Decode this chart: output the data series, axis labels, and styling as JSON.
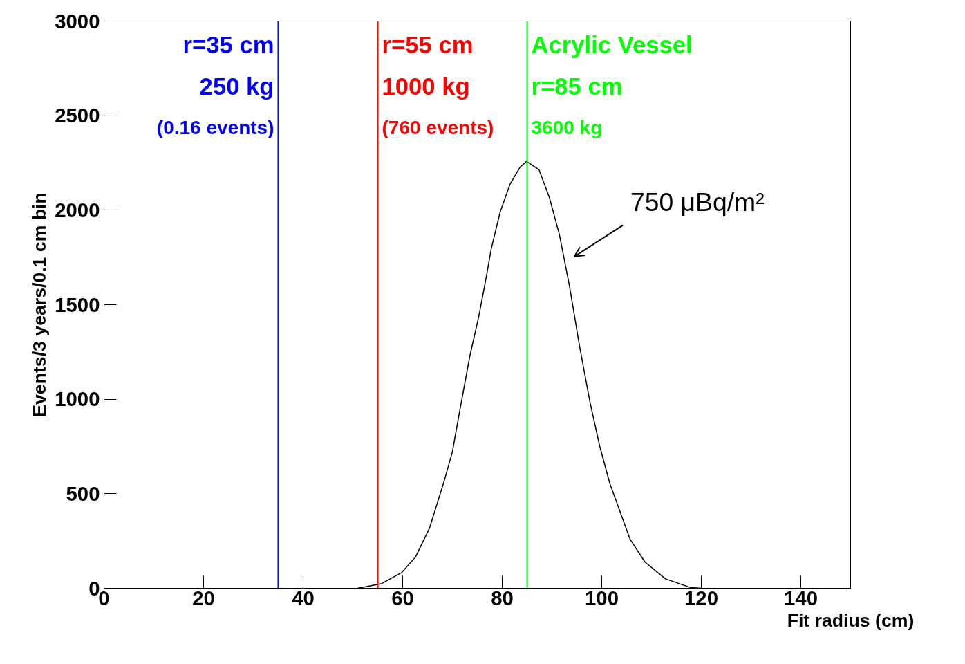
{
  "chart_data": {
    "type": "line",
    "xlabel": "Fit radius (cm)",
    "ylabel": "Events/3 years/0.1 cm bin",
    "x": [
      51,
      55.8,
      59.8,
      62.6,
      65.4,
      68.4,
      70,
      71.2,
      73.5,
      75.3,
      76.8,
      77.8,
      79.6,
      81.6,
      83.6,
      84.9,
      87.4,
      89.5,
      91.5,
      93.5,
      95.5,
      97.6,
      99.6,
      101.6,
      105.7,
      108.7,
      112.8,
      117.8,
      120
    ],
    "series": [
      {
        "color": "#000000",
        "values": [
          0,
          25,
          83,
          166,
          319,
          572,
          723,
          900,
          1229,
          1438,
          1647,
          1796,
          1991,
          2139,
          2228,
          2258,
          2214,
          2065,
          1870,
          1601,
          1287,
          989,
          751,
          556,
          259,
          138,
          50,
          4,
          0
        ]
      }
    ],
    "xlim": [
      0,
      150
    ],
    "ylim": [
      0,
      3000
    ],
    "xticks": [
      0,
      20,
      40,
      60,
      80,
      100,
      120,
      140
    ],
    "yticks": [
      0,
      500,
      1000,
      1500,
      2000,
      2500,
      3000
    ],
    "grid": false,
    "marker": "none",
    "line_style": "solid",
    "ref_lines": [
      {
        "axis": "x",
        "value": 35,
        "label": "r=35 cm\n250 kg\n(0.16 events)",
        "color": "#0000ff"
      },
      {
        "axis": "x",
        "value": 55,
        "label": "r=55 cm\n1000 kg\n(760 events)",
        "color": "#ff0000"
      },
      {
        "axis": "x",
        "value": 85,
        "label": "Acrylic Vessel\nr=85 cm\n3600 kg",
        "color": "#00ff00"
      }
    ],
    "annotations": [
      "750 μBq/m²"
    ]
  }
}
